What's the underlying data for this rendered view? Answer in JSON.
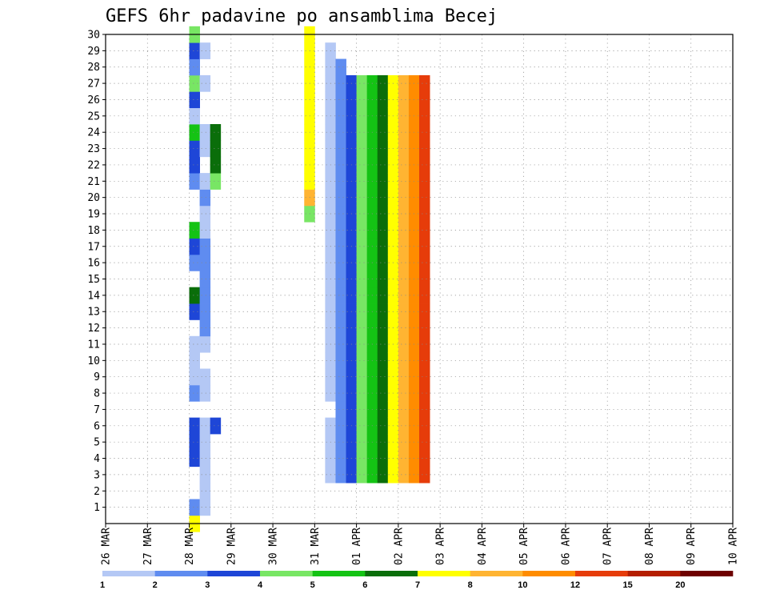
{
  "chart_data": {
    "type": "heatmap",
    "title": "GEFS 6hr padavine po ansamblima Becej",
    "x_tick_labels": [
      "26 MAR",
      "27 MAR",
      "28 MAR",
      "29 MAR",
      "30 MAR",
      "31 MAR",
      "01 APR",
      "02 APR",
      "03 APR",
      "04 APR",
      "05 APR",
      "06 APR",
      "07 APR",
      "08 APR",
      "09 APR",
      "10 APR"
    ],
    "x_unit": "6-hour steps",
    "x_range": [
      0,
      60
    ],
    "y_tick_labels": [
      1,
      2,
      3,
      4,
      5,
      6,
      7,
      8,
      9,
      10,
      11,
      12,
      13,
      14,
      15,
      16,
      17,
      18,
      19,
      20,
      21,
      22,
      23,
      24,
      25,
      26,
      27,
      28,
      29,
      30
    ],
    "y_range": [
      0,
      30
    ],
    "grid": true,
    "colorbar": {
      "labels": [
        "1",
        "2",
        "3",
        "4",
        "5",
        "6",
        "7",
        "8",
        "10",
        "12",
        "15",
        "20"
      ],
      "colors": [
        "#b4c8f5",
        "#5f8cf0",
        "#1e46d7",
        "#78e664",
        "#14c314",
        "#0a6e0a",
        "#ffff00",
        "#ffb432",
        "#ff8c00",
        "#e63c0a",
        "#b41e00",
        "#6e0000"
      ]
    },
    "cells": [
      [
        8,
        0,
        6
      ],
      [
        8,
        1,
        1
      ],
      [
        8,
        4,
        2
      ],
      [
        8,
        5,
        2
      ],
      [
        8,
        6,
        2
      ],
      [
        8,
        8,
        1
      ],
      [
        8,
        9,
        0
      ],
      [
        8,
        10,
        0
      ],
      [
        8,
        11,
        0
      ],
      [
        8,
        13,
        2
      ],
      [
        8,
        14,
        5
      ],
      [
        8,
        16,
        1
      ],
      [
        8,
        17,
        2
      ],
      [
        8,
        18,
        4
      ],
      [
        8,
        21,
        1
      ],
      [
        8,
        22,
        2
      ],
      [
        8,
        23,
        2
      ],
      [
        8,
        24,
        4
      ],
      [
        8,
        25,
        0
      ],
      [
        8,
        26,
        2
      ],
      [
        8,
        27,
        3
      ],
      [
        8,
        28,
        1
      ],
      [
        8,
        29,
        2
      ],
      [
        8,
        30,
        3
      ],
      [
        9,
        1,
        0
      ],
      [
        9,
        2,
        0
      ],
      [
        9,
        3,
        0
      ],
      [
        9,
        4,
        0
      ],
      [
        9,
        5,
        0
      ],
      [
        9,
        6,
        0
      ],
      [
        9,
        8,
        0
      ],
      [
        9,
        9,
        0
      ],
      [
        9,
        11,
        0
      ],
      [
        9,
        12,
        1
      ],
      [
        9,
        13,
        1
      ],
      [
        9,
        14,
        1
      ],
      [
        9,
        15,
        1
      ],
      [
        9,
        16,
        1
      ],
      [
        9,
        17,
        1
      ],
      [
        9,
        18,
        0
      ],
      [
        9,
        19,
        0
      ],
      [
        9,
        20,
        1
      ],
      [
        9,
        21,
        0
      ],
      [
        9,
        23,
        0
      ],
      [
        9,
        24,
        0
      ],
      [
        9,
        27,
        0
      ],
      [
        9,
        29,
        0
      ],
      [
        10,
        6,
        2
      ],
      [
        10,
        21,
        3
      ],
      [
        10,
        22,
        5
      ],
      [
        10,
        23,
        5
      ],
      [
        10,
        24,
        5
      ],
      [
        19,
        19,
        3
      ],
      [
        19,
        20,
        7
      ],
      [
        19,
        21,
        6
      ],
      [
        19,
        22,
        6
      ],
      [
        19,
        23,
        6
      ],
      [
        19,
        24,
        6
      ],
      [
        19,
        25,
        6
      ],
      [
        19,
        26,
        6
      ],
      [
        19,
        27,
        6
      ],
      [
        19,
        28,
        6
      ],
      [
        19,
        29,
        6
      ],
      [
        19,
        30,
        6
      ],
      [
        21,
        3,
        0
      ],
      [
        21,
        4,
        0
      ],
      [
        21,
        5,
        0
      ],
      [
        21,
        6,
        0
      ],
      [
        21,
        8,
        0
      ],
      [
        21,
        9,
        0
      ],
      [
        21,
        10,
        0
      ],
      [
        21,
        11,
        0
      ],
      [
        21,
        12,
        0
      ],
      [
        21,
        13,
        0
      ],
      [
        21,
        14,
        0
      ],
      [
        21,
        15,
        0
      ],
      [
        21,
        16,
        0
      ],
      [
        21,
        17,
        0
      ],
      [
        21,
        18,
        0
      ],
      [
        21,
        19,
        0
      ],
      [
        21,
        20,
        0
      ],
      [
        21,
        21,
        0
      ],
      [
        21,
        22,
        0
      ],
      [
        21,
        23,
        0
      ],
      [
        21,
        24,
        0
      ],
      [
        21,
        25,
        0
      ],
      [
        21,
        26,
        0
      ],
      [
        21,
        27,
        0
      ],
      [
        21,
        28,
        0
      ],
      [
        21,
        29,
        0
      ],
      [
        22,
        3,
        1
      ],
      [
        22,
        4,
        1
      ],
      [
        22,
        5,
        1
      ],
      [
        22,
        6,
        1
      ],
      [
        22,
        7,
        1
      ],
      [
        22,
        8,
        1
      ],
      [
        22,
        9,
        1
      ],
      [
        22,
        10,
        1
      ],
      [
        22,
        11,
        1
      ],
      [
        22,
        12,
        1
      ],
      [
        22,
        13,
        1
      ],
      [
        22,
        14,
        1
      ],
      [
        22,
        15,
        1
      ],
      [
        22,
        16,
        1
      ],
      [
        22,
        17,
        1
      ],
      [
        22,
        18,
        1
      ],
      [
        22,
        19,
        1
      ],
      [
        22,
        20,
        1
      ],
      [
        22,
        21,
        1
      ],
      [
        22,
        22,
        1
      ],
      [
        22,
        23,
        1
      ],
      [
        22,
        24,
        1
      ],
      [
        22,
        25,
        1
      ],
      [
        22,
        26,
        1
      ],
      [
        22,
        27,
        1
      ],
      [
        22,
        28,
        1
      ],
      [
        23,
        3,
        2
      ],
      [
        23,
        4,
        2
      ],
      [
        23,
        5,
        2
      ],
      [
        23,
        6,
        2
      ],
      [
        23,
        7,
        2
      ],
      [
        23,
        8,
        2
      ],
      [
        23,
        9,
        2
      ],
      [
        23,
        10,
        2
      ],
      [
        23,
        11,
        2
      ],
      [
        23,
        12,
        2
      ],
      [
        23,
        13,
        2
      ],
      [
        23,
        14,
        2
      ],
      [
        23,
        15,
        2
      ],
      [
        23,
        16,
        2
      ],
      [
        23,
        17,
        2
      ],
      [
        23,
        18,
        2
      ],
      [
        23,
        19,
        2
      ],
      [
        23,
        20,
        2
      ],
      [
        23,
        21,
        2
      ],
      [
        23,
        22,
        2
      ],
      [
        23,
        23,
        2
      ],
      [
        23,
        24,
        2
      ],
      [
        23,
        25,
        2
      ],
      [
        23,
        26,
        2
      ],
      [
        23,
        27,
        2
      ],
      [
        24,
        3,
        3
      ],
      [
        24,
        4,
        3
      ],
      [
        24,
        5,
        3
      ],
      [
        24,
        6,
        3
      ],
      [
        24,
        7,
        3
      ],
      [
        24,
        8,
        3
      ],
      [
        24,
        9,
        3
      ],
      [
        24,
        10,
        3
      ],
      [
        24,
        11,
        3
      ],
      [
        24,
        12,
        3
      ],
      [
        24,
        13,
        3
      ],
      [
        24,
        14,
        3
      ],
      [
        24,
        15,
        3
      ],
      [
        24,
        16,
        3
      ],
      [
        24,
        17,
        3
      ],
      [
        24,
        18,
        3
      ],
      [
        24,
        19,
        3
      ],
      [
        24,
        20,
        3
      ],
      [
        24,
        21,
        3
      ],
      [
        24,
        22,
        3
      ],
      [
        24,
        23,
        3
      ],
      [
        24,
        24,
        3
      ],
      [
        24,
        25,
        3
      ],
      [
        24,
        26,
        3
      ],
      [
        24,
        27,
        3
      ],
      [
        25,
        3,
        4
      ],
      [
        25,
        4,
        4
      ],
      [
        25,
        5,
        4
      ],
      [
        25,
        6,
        4
      ],
      [
        25,
        7,
        4
      ],
      [
        25,
        8,
        4
      ],
      [
        25,
        9,
        4
      ],
      [
        25,
        10,
        4
      ],
      [
        25,
        11,
        4
      ],
      [
        25,
        12,
        4
      ],
      [
        25,
        13,
        4
      ],
      [
        25,
        14,
        4
      ],
      [
        25,
        15,
        4
      ],
      [
        25,
        16,
        4
      ],
      [
        25,
        17,
        4
      ],
      [
        25,
        18,
        4
      ],
      [
        25,
        19,
        4
      ],
      [
        25,
        20,
        4
      ],
      [
        25,
        21,
        4
      ],
      [
        25,
        22,
        4
      ],
      [
        25,
        23,
        4
      ],
      [
        25,
        24,
        4
      ],
      [
        25,
        25,
        4
      ],
      [
        25,
        26,
        4
      ],
      [
        25,
        27,
        4
      ],
      [
        26,
        3,
        5
      ],
      [
        26,
        4,
        5
      ],
      [
        26,
        5,
        5
      ],
      [
        26,
        6,
        5
      ],
      [
        26,
        7,
        5
      ],
      [
        26,
        8,
        5
      ],
      [
        26,
        9,
        5
      ],
      [
        26,
        10,
        5
      ],
      [
        26,
        11,
        5
      ],
      [
        26,
        12,
        5
      ],
      [
        26,
        13,
        5
      ],
      [
        26,
        14,
        5
      ],
      [
        26,
        15,
        5
      ],
      [
        26,
        16,
        5
      ],
      [
        26,
        17,
        5
      ],
      [
        26,
        18,
        5
      ],
      [
        26,
        19,
        5
      ],
      [
        26,
        20,
        5
      ],
      [
        26,
        21,
        5
      ],
      [
        26,
        22,
        5
      ],
      [
        26,
        23,
        5
      ],
      [
        26,
        24,
        5
      ],
      [
        26,
        25,
        5
      ],
      [
        26,
        26,
        5
      ],
      [
        26,
        27,
        5
      ],
      [
        27,
        3,
        6
      ],
      [
        27,
        4,
        6
      ],
      [
        27,
        5,
        6
      ],
      [
        27,
        6,
        6
      ],
      [
        27,
        7,
        6
      ],
      [
        27,
        8,
        6
      ],
      [
        27,
        9,
        6
      ],
      [
        27,
        10,
        6
      ],
      [
        27,
        11,
        6
      ],
      [
        27,
        12,
        6
      ],
      [
        27,
        13,
        6
      ],
      [
        27,
        14,
        6
      ],
      [
        27,
        15,
        6
      ],
      [
        27,
        16,
        6
      ],
      [
        27,
        17,
        6
      ],
      [
        27,
        18,
        6
      ],
      [
        27,
        19,
        6
      ],
      [
        27,
        20,
        6
      ],
      [
        27,
        21,
        6
      ],
      [
        27,
        22,
        6
      ],
      [
        27,
        23,
        6
      ],
      [
        27,
        24,
        6
      ],
      [
        27,
        25,
        6
      ],
      [
        27,
        26,
        6
      ],
      [
        27,
        27,
        6
      ],
      [
        28,
        3,
        7
      ],
      [
        28,
        4,
        7
      ],
      [
        28,
        5,
        7
      ],
      [
        28,
        6,
        7
      ],
      [
        28,
        7,
        7
      ],
      [
        28,
        8,
        7
      ],
      [
        28,
        9,
        7
      ],
      [
        28,
        10,
        7
      ],
      [
        28,
        11,
        7
      ],
      [
        28,
        12,
        7
      ],
      [
        28,
        13,
        7
      ],
      [
        28,
        14,
        7
      ],
      [
        28,
        15,
        7
      ],
      [
        28,
        16,
        7
      ],
      [
        28,
        17,
        7
      ],
      [
        28,
        18,
        7
      ],
      [
        28,
        19,
        7
      ],
      [
        28,
        20,
        7
      ],
      [
        28,
        21,
        7
      ],
      [
        28,
        22,
        7
      ],
      [
        28,
        23,
        7
      ],
      [
        28,
        24,
        7
      ],
      [
        28,
        25,
        7
      ],
      [
        28,
        26,
        7
      ],
      [
        28,
        27,
        7
      ],
      [
        29,
        3,
        8
      ],
      [
        29,
        4,
        8
      ],
      [
        29,
        5,
        8
      ],
      [
        29,
        6,
        8
      ],
      [
        29,
        7,
        8
      ],
      [
        29,
        8,
        8
      ],
      [
        29,
        9,
        8
      ],
      [
        29,
        10,
        8
      ],
      [
        29,
        11,
        8
      ],
      [
        29,
        12,
        8
      ],
      [
        29,
        13,
        8
      ],
      [
        29,
        14,
        8
      ],
      [
        29,
        15,
        8
      ],
      [
        29,
        16,
        8
      ],
      [
        29,
        17,
        8
      ],
      [
        29,
        18,
        8
      ],
      [
        29,
        19,
        8
      ],
      [
        29,
        20,
        8
      ],
      [
        29,
        21,
        8
      ],
      [
        29,
        22,
        8
      ],
      [
        29,
        23,
        8
      ],
      [
        29,
        24,
        8
      ],
      [
        29,
        25,
        8
      ],
      [
        29,
        26,
        8
      ],
      [
        29,
        27,
        8
      ],
      [
        30,
        3,
        9
      ],
      [
        30,
        4,
        9
      ],
      [
        30,
        5,
        9
      ],
      [
        30,
        6,
        9
      ],
      [
        30,
        7,
        9
      ],
      [
        30,
        8,
        9
      ],
      [
        30,
        9,
        9
      ],
      [
        30,
        10,
        9
      ],
      [
        30,
        11,
        9
      ],
      [
        30,
        12,
        9
      ],
      [
        30,
        13,
        9
      ],
      [
        30,
        14,
        9
      ],
      [
        30,
        15,
        9
      ],
      [
        30,
        16,
        9
      ],
      [
        30,
        17,
        9
      ],
      [
        30,
        18,
        9
      ],
      [
        30,
        19,
        9
      ],
      [
        30,
        20,
        9
      ],
      [
        30,
        21,
        9
      ],
      [
        30,
        22,
        9
      ],
      [
        30,
        23,
        9
      ],
      [
        30,
        24,
        9
      ],
      [
        30,
        25,
        9
      ],
      [
        30,
        26,
        9
      ],
      [
        30,
        27,
        9
      ]
    ]
  }
}
